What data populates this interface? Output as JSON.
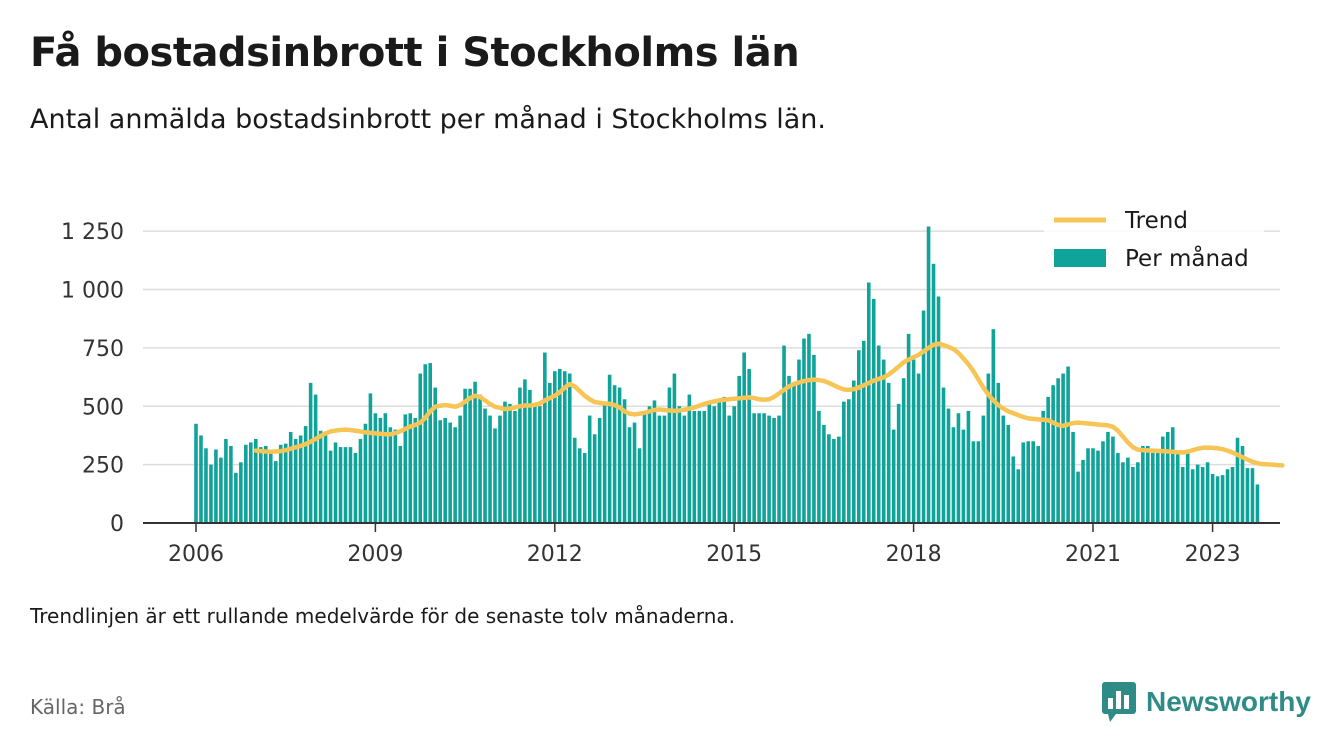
{
  "title": "Få bostadsinbrott i Stockholms län",
  "subtitle": "Antal anmälda bostadsinbrott per månad i Stockholms län.",
  "note": "Trendlinjen är ett rullande medelvärde för de senaste tolv månaderna.",
  "source": "Källa: Brå",
  "brand": {
    "name": "Newsworthy",
    "icon": "newsworthy-bar-chart-logo-icon",
    "color": "#2e8b86"
  },
  "colors": {
    "bars": "#0fa39a",
    "trend": "#f6c555",
    "grid": "#dddddd",
    "axis": "#333333"
  },
  "chart_data": {
    "type": "bar",
    "grid": true,
    "legend_position": "top-right",
    "legend": [
      {
        "name": "Trend",
        "kind": "line",
        "color": "#f6c555"
      },
      {
        "name": "Per månad",
        "kind": "bar",
        "color": "#0fa39a"
      }
    ],
    "x_ticks": [
      "2006",
      "2009",
      "2012",
      "2015",
      "2018",
      "2021",
      "2023"
    ],
    "y_ticks": [
      0,
      250,
      500,
      750,
      1000,
      1250
    ],
    "y_tick_labels": [
      "0",
      "250",
      "500",
      "750",
      "1 000",
      "1 250"
    ],
    "ylim": [
      0,
      1330
    ],
    "x_start": "2006-01",
    "x_end": "2023-04",
    "series": [
      {
        "name": "Per månad",
        "type": "bar",
        "values": [
          425,
          375,
          320,
          250,
          315,
          280,
          360,
          330,
          215,
          260,
          335,
          345,
          360,
          325,
          330,
          300,
          265,
          335,
          340,
          390,
          360,
          375,
          415,
          600,
          550,
          395,
          375,
          310,
          345,
          325,
          325,
          325,
          300,
          360,
          425,
          555,
          470,
          450,
          470,
          410,
          400,
          330,
          465,
          470,
          450,
          640,
          680,
          685,
          580,
          440,
          450,
          430,
          410,
          460,
          575,
          575,
          605,
          550,
          490,
          460,
          405,
          460,
          520,
          510,
          480,
          580,
          615,
          570,
          500,
          500,
          730,
          600,
          650,
          660,
          650,
          640,
          365,
          320,
          300,
          460,
          380,
          450,
          510,
          635,
          590,
          580,
          530,
          410,
          430,
          320,
          470,
          500,
          525,
          460,
          460,
          580,
          640,
          500,
          460,
          550,
          480,
          480,
          480,
          520,
          500,
          520,
          540,
          460,
          500,
          630,
          730,
          660,
          470,
          470,
          470,
          460,
          450,
          460,
          760,
          630,
          600,
          700,
          790,
          810,
          720,
          480,
          420,
          380,
          360,
          370,
          520,
          530,
          610,
          740,
          780,
          1030,
          960,
          760,
          700,
          600,
          400,
          510,
          620,
          810,
          700,
          640,
          910,
          1270,
          1110,
          970,
          580,
          490,
          410,
          470,
          400,
          480,
          350,
          350,
          460,
          640,
          830,
          600,
          460,
          420,
          285,
          230,
          345,
          350,
          350,
          330,
          480,
          540,
          590,
          620,
          640,
          670,
          390,
          220,
          270,
          320,
          320,
          310,
          350,
          390,
          370,
          300,
          260,
          280,
          240,
          260,
          330,
          330,
          300,
          300,
          370,
          390,
          410,
          300,
          240,
          300,
          230,
          250,
          240,
          260,
          210,
          200,
          205,
          230,
          240,
          365,
          330,
          235,
          235,
          165
        ]
      },
      {
        "name": "Trend",
        "type": "line",
        "values": [
          null,
          null,
          null,
          null,
          null,
          null,
          null,
          null,
          null,
          null,
          null,
          null,
          310,
          308,
          306,
          305,
          306,
          308,
          312,
          318,
          324,
          330,
          338,
          348,
          360,
          372,
          384,
          392,
          396,
          398,
          400,
          398,
          395,
          392,
          388,
          386,
          384,
          382,
          380,
          380,
          385,
          393,
          403,
          413,
          420,
          430,
          450,
          478,
          498,
          502,
          505,
          502,
          498,
          505,
          520,
          535,
          545,
          540,
          525,
          510,
          498,
          493,
          488,
          490,
          495,
          500,
          503,
          503,
          506,
          512,
          525,
          535,
          545,
          560,
          580,
          595,
          585,
          565,
          545,
          530,
          518,
          515,
          512,
          510,
          505,
          495,
          478,
          468,
          465,
          468,
          472,
          478,
          484,
          486,
          484,
          482,
          480,
          482,
          485,
          490,
          495,
          502,
          510,
          516,
          521,
          525,
          528,
          530,
          532,
          534,
          536,
          538,
          535,
          530,
          528,
          530,
          540,
          555,
          570,
          585,
          595,
          602,
          608,
          612,
          614,
          612,
          608,
          600,
          590,
          580,
          572,
          570,
          573,
          580,
          590,
          600,
          610,
          617,
          624,
          636,
          652,
          670,
          688,
          700,
          710,
          720,
          735,
          750,
          763,
          768,
          762,
          754,
          745,
          728,
          705,
          680,
          650,
          615,
          580,
          550,
          525,
          505,
          490,
          478,
          470,
          462,
          454,
          448,
          446,
          444,
          442,
          440,
          430,
          420,
          416,
          422,
          428,
          430,
          428,
          426,
          424,
          422,
          420,
          418,
          412,
          395,
          370,
          345,
          325,
          314,
          312,
          311,
          310,
          309,
          308,
          307,
          305,
          303,
          302,
          305,
          312,
          318,
          322,
          323,
          322,
          320,
          316,
          310,
          302,
          292,
          282,
          272,
          262,
          256,
          252,
          251,
          250,
          248,
          247
        ]
      }
    ]
  }
}
